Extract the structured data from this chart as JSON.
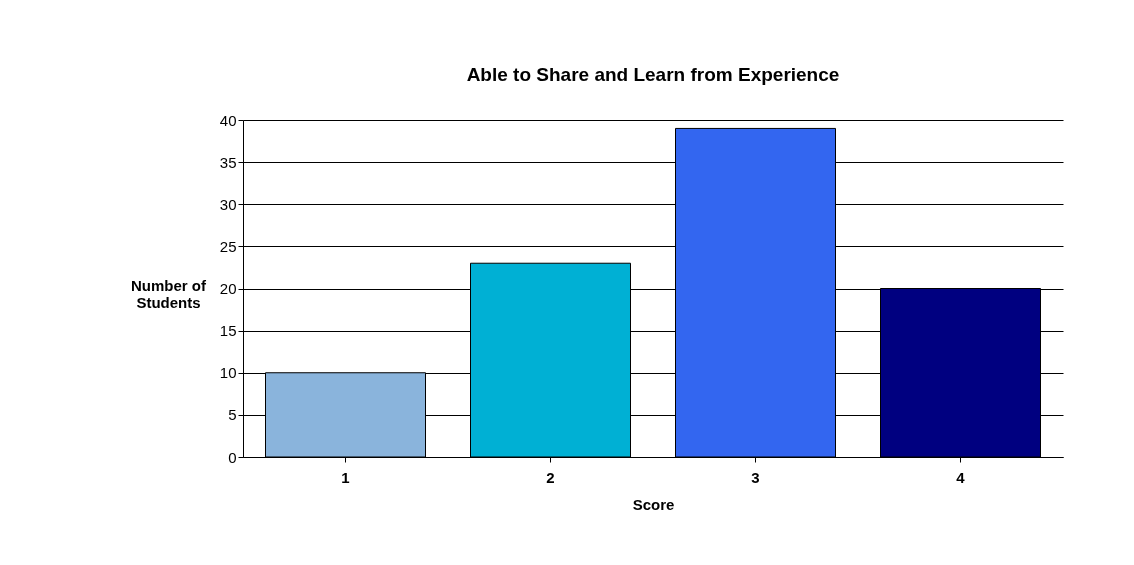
{
  "chart_data": {
    "type": "bar",
    "title": "Able to Share and Learn from Experience",
    "xlabel": "Score",
    "ylabel": "Number of\nStudents",
    "categories": [
      "1",
      "2",
      "3",
      "4"
    ],
    "values": [
      10,
      23,
      39,
      20
    ],
    "colors": [
      "#8ab4dc",
      "#00b0d4",
      "#3366f0",
      "#000080"
    ],
    "ylim": [
      0,
      40
    ],
    "yticks": [
      0,
      5,
      10,
      15,
      20,
      25,
      30,
      35,
      40
    ],
    "grid": "y"
  }
}
